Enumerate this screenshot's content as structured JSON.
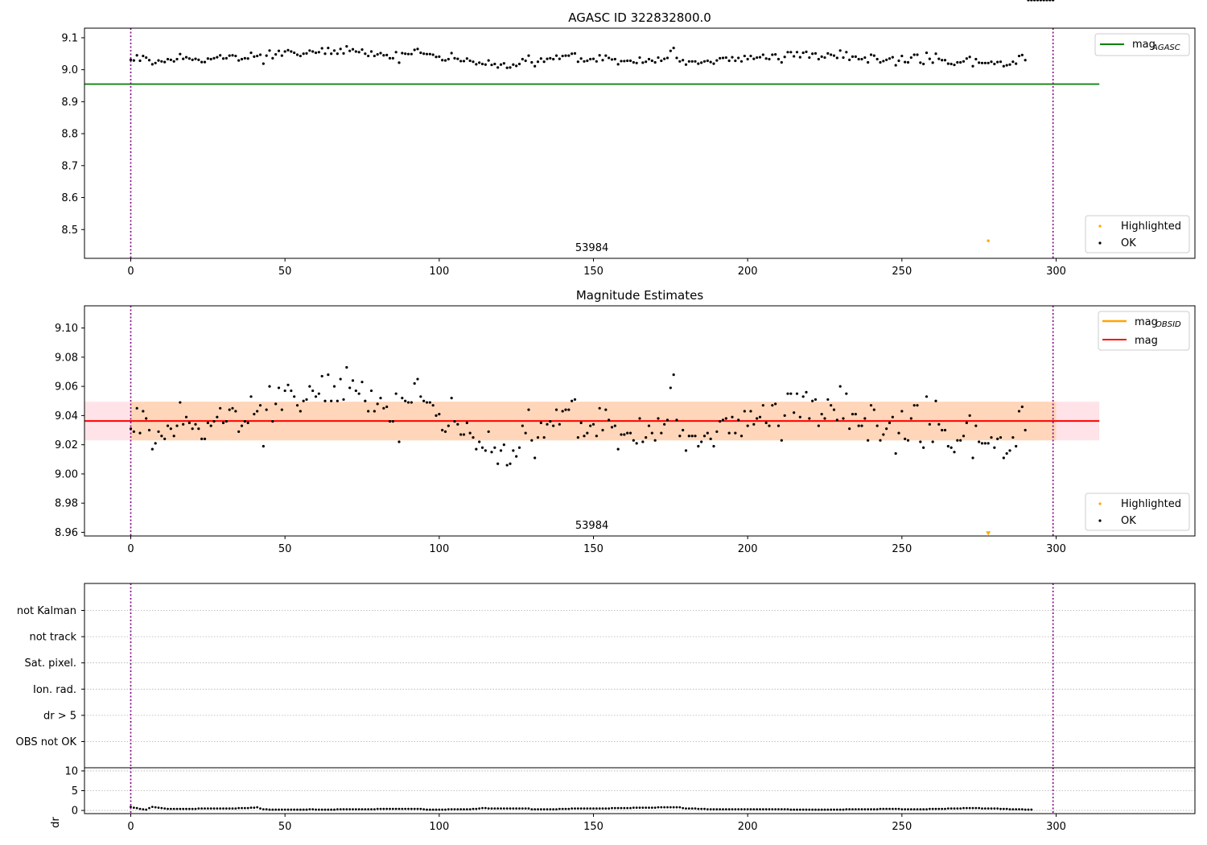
{
  "chart_data": [
    {
      "type": "scatter",
      "title": "AGASC ID 322832800.0",
      "xlabel": "",
      "ylabel": "",
      "xlim": [
        -15,
        345
      ],
      "ylim": [
        8.41,
        9.13
      ],
      "xticks": [
        0,
        50,
        100,
        150,
        200,
        250,
        300
      ],
      "yticks": [
        8.5,
        8.6,
        8.7,
        8.8,
        8.9,
        9.0,
        9.1
      ],
      "ytick_labels": [
        "8.5",
        "8.6",
        "8.7",
        "8.8",
        "8.9",
        "9.0",
        "9.1"
      ],
      "grid": false,
      "obsid_boundaries": [
        0,
        299
      ],
      "obsid_label": {
        "text": "53984",
        "x": 149.5
      },
      "mag_aca_line": {
        "value": 8.955,
        "x_end": 314,
        "color": "#008000"
      },
      "series": [
        {
          "name": "OK",
          "color": "#000000",
          "y_source": "mag"
        },
        {
          "name": "Highlighted",
          "color": "#ffa500",
          "points": [
            [
              278,
              8.465
            ]
          ]
        }
      ],
      "legend_lines": {
        "name": "mag",
        "sub": "AGASC",
        "color": "#008000"
      },
      "legend_markers": [
        "Highlighted",
        "OK"
      ]
    },
    {
      "type": "scatter",
      "title": "Magnitude Estimates",
      "xlabel": "",
      "ylabel": "",
      "xlim": [
        -15,
        345
      ],
      "ylim": [
        8.9575,
        9.1152
      ],
      "xticks": [
        0,
        50,
        100,
        150,
        200,
        250,
        300
      ],
      "yticks": [
        8.96,
        8.98,
        9.0,
        9.02,
        9.04,
        9.06,
        9.08,
        9.1
      ],
      "ytick_labels": [
        "8.96",
        "8.98",
        "9.00",
        "9.02",
        "9.04",
        "9.06",
        "9.08",
        "9.10"
      ],
      "grid": false,
      "obsid_boundaries": [
        0,
        299
      ],
      "obsid_label": {
        "text": "53984",
        "x": 149.5
      },
      "mag_line": {
        "value": 9.0363,
        "x_end": 314,
        "color": "#ff0000"
      },
      "mag_band": {
        "low": 9.023,
        "high": 9.0495,
        "x_end": 314,
        "color": "#ffc0cb"
      },
      "mag_obsid_band": {
        "low": 9.023,
        "high": 9.0495,
        "x_end": 300,
        "color": "#ffa500"
      },
      "series": [
        {
          "name": "OK",
          "color": "#000000",
          "y_source": "mag"
        },
        {
          "name": "Highlighted",
          "color": "#ffa500",
          "points": [
            [
              278,
              8.959
            ]
          ]
        }
      ],
      "legend_lines": [
        {
          "name": "mag",
          "sub": "OBSID",
          "color": "#ffa500"
        },
        {
          "name": "mag",
          "sub": "",
          "color": "#ff0000"
        }
      ],
      "legend_markers": [
        "Highlighted",
        "OK"
      ]
    },
    {
      "type": "scatter",
      "title": "",
      "xlabel": "",
      "ylabel": "",
      "xlim": [
        -15,
        345
      ],
      "categories": [
        "OBS not OK",
        "dr > 5",
        "Ion. rad.",
        "Sat. pixel.",
        "not track",
        "not Kalman"
      ],
      "grid": true,
      "obsid_boundaries": [
        0,
        299
      ],
      "flags": []
    },
    {
      "type": "scatter",
      "title": "",
      "xlabel": "",
      "ylabel": "dr",
      "xlim": [
        -15,
        345
      ],
      "ylim": [
        -0.8,
        10.8
      ],
      "xticks": [
        0,
        50,
        100,
        150,
        200,
        250,
        300
      ],
      "yticks": [
        0,
        5,
        10
      ],
      "ytick_labels": [
        "0",
        "5",
        "10"
      ],
      "grid": true,
      "obsid_boundaries": [
        0,
        299
      ],
      "series": [
        {
          "name": "dr",
          "color": "#000000",
          "y_source": "dr"
        }
      ]
    }
  ],
  "x": [
    0,
    1,
    2,
    3,
    4,
    5,
    6,
    7,
    8,
    9,
    10,
    11,
    12,
    13,
    14,
    15,
    16,
    17,
    18,
    19,
    20,
    21,
    22,
    23,
    24,
    25,
    26,
    27,
    28,
    29,
    30,
    31,
    32,
    33,
    34,
    35,
    36,
    37,
    38,
    39,
    40,
    41,
    42,
    43,
    44,
    45,
    46,
    47,
    48,
    49,
    50,
    51,
    52,
    53,
    54,
    55,
    56,
    57,
    58,
    59,
    60,
    61,
    62,
    63,
    64,
    65,
    66,
    67,
    68,
    69,
    70,
    71,
    72,
    73,
    74,
    75,
    76,
    77,
    78,
    79,
    80,
    81,
    82,
    83,
    84,
    85,
    86,
    87,
    88,
    89,
    90,
    91,
    92,
    93,
    94,
    95,
    96,
    97,
    98,
    99,
    100,
    101,
    102,
    103,
    104,
    105,
    106,
    107,
    108,
    109,
    110,
    111,
    112,
    113,
    114,
    115,
    116,
    117,
    118,
    119,
    120,
    121,
    122,
    123,
    124,
    125,
    126,
    127,
    128,
    129,
    130,
    131,
    132,
    133,
    134,
    135,
    136,
    137,
    138,
    139,
    140,
    141,
    142,
    143,
    144,
    145,
    146,
    147,
    148,
    149,
    150,
    151,
    152,
    153,
    154,
    155,
    156,
    157,
    158,
    159,
    160,
    161,
    162,
    163,
    164,
    165,
    166,
    167,
    168,
    169,
    170,
    171,
    172,
    173,
    174,
    175,
    176,
    177,
    178,
    179,
    180,
    181,
    182,
    183,
    184,
    185,
    186,
    187,
    188,
    189,
    190,
    191,
    192,
    193,
    194,
    195,
    196,
    197,
    198,
    199,
    200,
    201,
    202,
    203,
    204,
    205,
    206,
    207,
    208,
    209,
    210,
    211,
    212,
    213,
    214,
    215,
    216,
    217,
    218,
    219,
    220,
    221,
    222,
    223,
    224,
    225,
    226,
    227,
    228,
    229,
    230,
    231,
    232,
    233,
    234,
    235,
    236,
    237,
    238,
    239,
    240,
    241,
    242,
    243,
    244,
    245,
    246,
    247,
    248,
    249,
    250,
    251,
    252,
    253,
    254,
    255,
    256,
    257,
    258,
    259,
    260,
    261,
    262,
    263,
    264,
    265,
    266,
    267,
    268,
    269,
    270,
    271,
    272,
    273,
    274,
    275,
    276,
    277,
    278,
    279,
    280,
    281,
    282,
    283,
    284,
    285,
    286,
    287,
    288,
    289,
    290,
    291,
    292,
    293,
    294,
    295,
    296,
    297,
    298,
    299
  ],
  "mag": [
    9.031,
    9.029,
    9.045,
    9.028,
    9.043,
    9.038,
    9.03,
    9.017,
    9.021,
    9.029,
    9.026,
    9.024,
    9.033,
    9.031,
    9.026,
    9.033,
    9.049,
    9.034,
    9.039,
    9.035,
    9.031,
    9.034,
    9.031,
    9.024,
    9.024,
    9.035,
    9.033,
    9.036,
    9.039,
    9.045,
    9.035,
    9.036,
    9.044,
    9.045,
    9.043,
    9.029,
    9.033,
    9.036,
    9.035,
    9.053,
    9.041,
    9.043,
    9.047,
    9.019,
    9.044,
    9.06,
    9.036,
    9.048,
    9.059,
    9.044,
    9.057,
    9.061,
    9.057,
    9.053,
    9.047,
    9.043,
    9.05,
    9.051,
    9.06,
    9.057,
    9.053,
    9.055,
    9.067,
    9.05,
    9.068,
    9.05,
    9.06,
    9.05,
    9.065,
    9.051,
    9.073,
    9.059,
    9.064,
    9.057,
    9.055,
    9.063,
    9.05,
    9.043,
    9.057,
    9.043,
    9.048,
    9.052,
    9.045,
    9.046,
    9.036,
    9.036,
    9.055,
    9.022,
    9.052,
    9.05,
    9.049,
    9.049,
    9.062,
    9.065,
    9.053,
    9.05,
    9.049,
    9.049,
    9.047,
    9.04,
    9.041,
    9.03,
    9.029,
    9.033,
    9.052,
    9.036,
    9.034,
    9.027,
    9.027,
    9.035,
    9.028,
    9.025,
    9.017,
    9.022,
    9.018,
    9.016,
    9.029,
    9.015,
    9.018,
    9.007,
    9.016,
    9.02,
    9.006,
    9.007,
    9.016,
    9.012,
    9.018,
    9.033,
    9.028,
    9.044,
    9.023,
    9.011,
    9.025,
    9.035,
    9.025,
    9.034,
    9.036,
    9.033,
    9.044,
    9.034,
    9.043,
    9.044,
    9.044,
    9.05,
    9.051,
    9.025,
    9.035,
    9.026,
    9.028,
    9.033,
    9.034,
    9.026,
    9.045,
    9.03,
    9.044,
    9.037,
    9.032,
    9.033,
    9.017,
    9.027,
    9.027,
    9.028,
    9.028,
    9.023,
    9.021,
    9.038,
    9.022,
    9.025,
    9.033,
    9.028,
    9.023,
    9.038,
    9.028,
    9.034,
    9.037,
    9.059,
    9.068,
    9.037,
    9.026,
    9.03,
    9.016,
    9.026,
    9.026,
    9.026,
    9.019,
    9.022,
    9.026,
    9.028,
    9.024,
    9.019,
    9.029,
    9.036,
    9.037,
    9.038,
    9.028,
    9.039,
    9.028,
    9.037,
    9.026,
    9.043,
    9.033,
    9.043,
    9.034,
    9.038,
    9.039,
    9.047,
    9.035,
    9.033,
    9.047,
    9.048,
    9.033,
    9.023,
    9.04,
    9.055,
    9.055,
    9.042,
    9.055,
    9.039,
    9.053,
    9.056,
    9.038,
    9.05,
    9.051,
    9.033,
    9.041,
    9.038,
    9.051,
    9.047,
    9.044,
    9.037,
    9.06,
    9.038,
    9.055,
    9.031,
    9.041,
    9.041,
    9.033,
    9.033,
    9.038,
    9.023,
    9.047,
    9.044,
    9.033,
    9.023,
    9.027,
    9.031,
    9.035,
    9.039,
    9.014,
    9.028,
    9.043,
    9.024,
    9.023,
    9.038,
    9.047,
    9.047,
    9.022,
    9.018,
    9.053,
    9.034,
    9.022,
    9.05,
    9.034,
    9.03,
    9.03,
    9.019,
    9.018,
    9.015,
    9.023,
    9.023,
    9.026,
    9.035,
    9.04,
    9.011,
    9.033,
    9.022,
    9.021,
    9.021,
    9.021,
    9.025,
    9.018,
    9.024,
    9.025,
    9.011,
    9.014,
    9.016,
    9.025,
    9.019,
    9.043,
    9.046,
    9.03
  ],
  "dr": [
    0.9,
    0.7,
    0.6,
    0.4,
    0.3,
    0.2,
    0.6,
    0.9,
    0.8,
    0.7,
    0.6,
    0.5,
    0.4,
    0.4,
    0.4,
    0.4,
    0.4,
    0.4,
    0.4,
    0.4,
    0.4,
    0.4,
    0.5,
    0.5,
    0.5,
    0.5,
    0.5,
    0.5,
    0.5,
    0.5,
    0.5,
    0.5,
    0.5,
    0.5,
    0.5,
    0.6,
    0.6,
    0.6,
    0.6,
    0.7,
    0.7,
    0.8,
    0.5,
    0.3,
    0.3,
    0.2,
    0.2,
    0.2,
    0.2,
    0.2,
    0.2,
    0.2,
    0.2,
    0.2,
    0.2,
    0.2,
    0.2,
    0.2,
    0.3,
    0.3,
    0.2,
    0.2,
    0.2,
    0.2,
    0.2,
    0.2,
    0.2,
    0.3,
    0.3,
    0.3,
    0.3,
    0.3,
    0.3,
    0.3,
    0.3,
    0.3,
    0.3,
    0.3,
    0.3,
    0.3,
    0.4,
    0.4,
    0.4,
    0.4,
    0.4,
    0.4,
    0.4,
    0.4,
    0.4,
    0.4,
    0.4,
    0.4,
    0.4,
    0.4,
    0.4,
    0.3,
    0.2,
    0.2,
    0.2,
    0.2,
    0.2,
    0.2,
    0.2,
    0.3,
    0.3,
    0.3,
    0.3,
    0.3,
    0.3,
    0.3,
    0.3,
    0.4,
    0.4,
    0.5,
    0.6,
    0.6,
    0.5,
    0.5,
    0.5,
    0.5,
    0.5,
    0.5,
    0.5,
    0.5,
    0.5,
    0.5,
    0.5,
    0.5,
    0.5,
    0.5,
    0.3,
    0.3,
    0.3,
    0.3,
    0.3,
    0.3,
    0.3,
    0.3,
    0.3,
    0.4,
    0.4,
    0.4,
    0.4,
    0.5,
    0.5,
    0.5,
    0.5,
    0.5,
    0.5,
    0.5,
    0.5,
    0.5,
    0.5,
    0.5,
    0.5,
    0.5,
    0.6,
    0.6,
    0.6,
    0.6,
    0.6,
    0.6,
    0.6,
    0.7,
    0.7,
    0.7,
    0.7,
    0.7,
    0.7,
    0.7,
    0.7,
    0.8,
    0.8,
    0.8,
    0.8,
    0.8,
    0.8,
    0.8,
    0.8,
    0.6,
    0.5,
    0.5,
    0.5,
    0.5,
    0.4,
    0.4,
    0.4,
    0.3,
    0.3,
    0.3,
    0.3,
    0.3,
    0.3,
    0.3,
    0.3,
    0.3,
    0.3,
    0.3,
    0.3,
    0.3,
    0.3,
    0.3,
    0.3,
    0.3,
    0.3,
    0.3,
    0.3,
    0.3,
    0.3,
    0.3,
    0.3,
    0.3,
    0.3,
    0.3,
    0.2,
    0.2,
    0.2,
    0.2,
    0.2,
    0.2,
    0.2,
    0.2,
    0.2,
    0.2,
    0.2,
    0.2,
    0.2,
    0.2,
    0.2,
    0.2,
    0.2,
    0.2,
    0.3,
    0.3,
    0.3,
    0.3,
    0.3,
    0.3,
    0.3,
    0.3,
    0.3,
    0.3,
    0.3,
    0.4,
    0.4,
    0.4,
    0.4,
    0.4,
    0.4,
    0.4,
    0.3,
    0.3,
    0.3,
    0.3,
    0.3,
    0.3,
    0.3,
    0.3,
    0.3,
    0.4,
    0.4,
    0.4,
    0.4,
    0.4,
    0.4,
    0.5,
    0.5,
    0.5,
    0.5,
    0.5,
    0.6,
    0.6,
    0.6,
    0.6,
    0.6,
    0.6,
    0.5,
    0.5,
    0.5,
    0.5,
    0.5,
    0.5,
    0.4,
    0.4,
    0.4,
    0.3,
    0.3,
    0.3,
    0.3,
    0.3,
    0.2,
    0.2,
    0.2
  ]
}
